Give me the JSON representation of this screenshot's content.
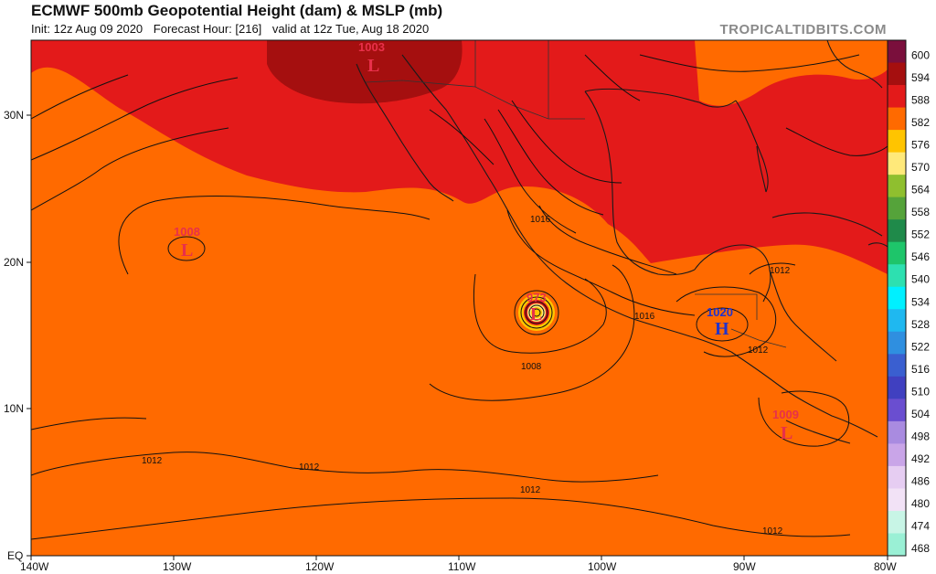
{
  "header": {
    "title": "ECMWF 500mb Geopotential Height (dam) & MSLP (mb)",
    "init": "Init: 12z Aug 09 2020",
    "forecast_hour": "Forecast Hour: [216]",
    "valid": "valid at 12z Tue, Aug 18 2020",
    "brand": "TROPICALTIDBITS.COM"
  },
  "axes": {
    "lon_ticks": [
      "140W",
      "130W",
      "120W",
      "110W",
      "100W",
      "90W",
      "80W"
    ],
    "lat_ticks": [
      "EQ",
      "10N",
      "20N",
      "30N"
    ]
  },
  "colorbar": {
    "labels": [
      "600",
      "594",
      "588",
      "582",
      "576",
      "570",
      "564",
      "558",
      "552",
      "546",
      "540",
      "534",
      "528",
      "522",
      "516",
      "510",
      "504",
      "498",
      "492",
      "486",
      "480",
      "474",
      "468"
    ],
    "colors": [
      "#7a0f3c",
      "#a50f0f",
      "#e31a1a",
      "#ff6a00",
      "#ffc400",
      "#ffe97a",
      "#8fbf2f",
      "#55a33a",
      "#1f8a4a",
      "#1ec56a",
      "#2de0b0",
      "#00f0ff",
      "#1fb8f0",
      "#2f8fe0",
      "#3a5fd0",
      "#4040c0",
      "#6a4ed0",
      "#a98be0",
      "#c9a5e8",
      "#e6cdf2",
      "#f2e2f6",
      "#c8f5e6",
      "#9af0d5"
    ]
  },
  "pressure_systems": [
    {
      "type": "L",
      "value": "1003",
      "color": "#e8304a"
    },
    {
      "type": "L",
      "value": "1008",
      "color": "#e8304a"
    },
    {
      "type": "L",
      "value": "973",
      "color": "#e8304a"
    },
    {
      "type": "H",
      "value": "1020",
      "color": "#2233cc"
    },
    {
      "type": "L",
      "value": "1009",
      "color": "#e8304a"
    }
  ],
  "isobar_labels": [
    "1016",
    "1016",
    "1012",
    "1008",
    "1012",
    "1012",
    "1012",
    "1012",
    "1012"
  ]
}
